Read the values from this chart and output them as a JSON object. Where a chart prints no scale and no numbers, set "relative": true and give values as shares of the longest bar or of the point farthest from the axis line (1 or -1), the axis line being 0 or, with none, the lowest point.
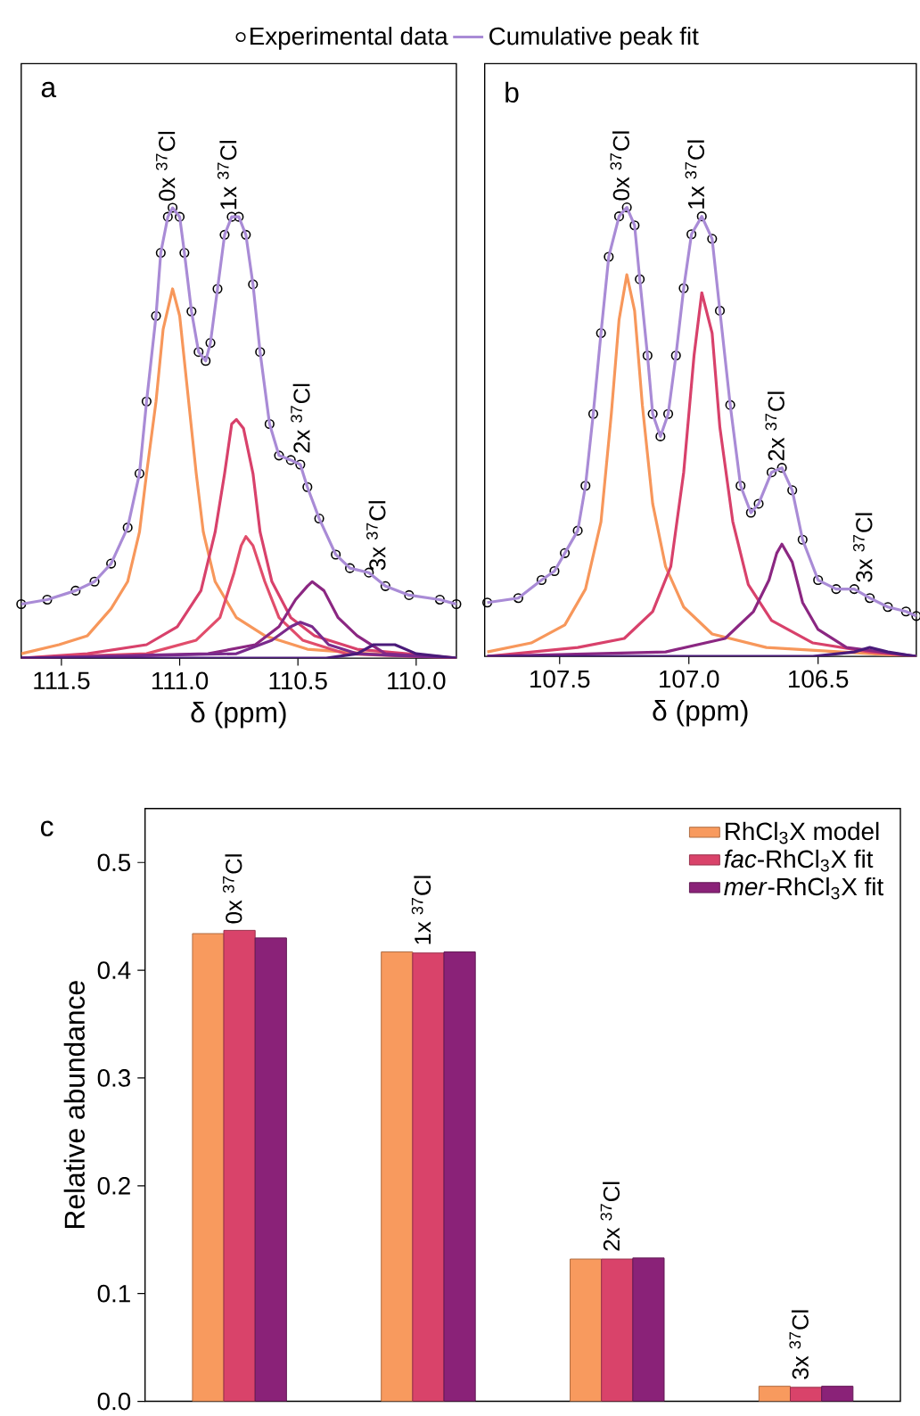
{
  "chart_data": [
    {
      "type": "line",
      "title": "a",
      "xlabel": "δ (ppm)",
      "relative": true,
      "legend": "top",
      "xlim": [
        111.67,
        109.83
      ],
      "xticks": [
        111.5,
        {
          "value": 111,
          "label": "111.0"
        },
        110.5,
        {
          "value": 110,
          "label": "110.0"
        }
      ],
      "annotations": [
        {
          "text": "0x $^{37}$Cl",
          "x": 111.03,
          "y": 1.0
        },
        {
          "text": "1x $^{37}$Cl",
          "x": 110.77,
          "y": 0.98
        },
        {
          "text": "2x $^{37}$Cl",
          "x": 110.46,
          "y": 0.44
        },
        {
          "text": "3x $^{37}$Cl",
          "x": 110.14,
          "y": 0.18
        }
      ],
      "series": [
        {
          "name": "Experimental data",
          "type": "scatter",
          "marker": "circle",
          "color": "#000000",
          "x": [
            111.67,
            111.56,
            111.44,
            111.36,
            111.29,
            111.22,
            111.17,
            111.14,
            111.1,
            111.08,
            111.05,
            111.03,
            111.0,
            110.98,
            110.95,
            110.92,
            110.89,
            110.87,
            110.84,
            110.81,
            110.78,
            110.75,
            110.72,
            110.69,
            110.66,
            110.62,
            110.58,
            110.53,
            110.49,
            110.46,
            110.41,
            110.34,
            110.28,
            110.2,
            110.13,
            110.03,
            109.9,
            109.83
          ],
          "values": [
            0.12,
            0.13,
            0.15,
            0.17,
            0.21,
            0.29,
            0.41,
            0.57,
            0.76,
            0.9,
            0.98,
            1.0,
            0.98,
            0.9,
            0.77,
            0.68,
            0.66,
            0.7,
            0.82,
            0.94,
            0.98,
            0.98,
            0.94,
            0.83,
            0.68,
            0.52,
            0.45,
            0.44,
            0.43,
            0.38,
            0.31,
            0.23,
            0.2,
            0.19,
            0.16,
            0.14,
            0.13,
            0.12
          ]
        },
        {
          "name": "Cumulative peak fit",
          "type": "line",
          "color": "#a98bd6",
          "x": [
            111.67,
            111.56,
            111.44,
            111.36,
            111.29,
            111.22,
            111.17,
            111.14,
            111.1,
            111.08,
            111.05,
            111.03,
            111.0,
            110.98,
            110.95,
            110.92,
            110.89,
            110.87,
            110.84,
            110.81,
            110.78,
            110.75,
            110.72,
            110.69,
            110.66,
            110.62,
            110.58,
            110.53,
            110.49,
            110.46,
            110.41,
            110.34,
            110.28,
            110.2,
            110.13,
            110.03,
            109.9,
            109.83
          ],
          "values": [
            0.12,
            0.13,
            0.15,
            0.17,
            0.21,
            0.29,
            0.41,
            0.57,
            0.76,
            0.9,
            0.98,
            1.0,
            0.98,
            0.9,
            0.77,
            0.68,
            0.66,
            0.7,
            0.82,
            0.94,
            0.98,
            0.98,
            0.94,
            0.83,
            0.68,
            0.52,
            0.45,
            0.44,
            0.43,
            0.38,
            0.31,
            0.23,
            0.2,
            0.19,
            0.16,
            0.14,
            0.13,
            0.12
          ]
        },
        {
          "color": "#f7975b",
          "x": [
            111.67,
            111.51,
            111.39,
            111.29,
            111.22,
            111.17,
            111.14,
            111.1,
            111.07,
            111.03,
            111.0,
            110.97,
            110.93,
            110.9,
            110.85,
            110.76,
            110.64,
            110.46,
            110.2,
            109.83
          ],
          "values": [
            0.01,
            0.03,
            0.05,
            0.11,
            0.17,
            0.28,
            0.41,
            0.57,
            0.73,
            0.82,
            0.76,
            0.61,
            0.41,
            0.28,
            0.17,
            0.09,
            0.05,
            0.02,
            0.01,
            0.0
          ]
        },
        {
          "color": "#d8416b",
          "x": [
            111.67,
            111.39,
            111.14,
            111.01,
            110.91,
            110.85,
            110.81,
            110.78,
            110.76,
            110.73,
            110.69,
            110.66,
            110.61,
            110.53,
            110.43,
            110.25,
            109.83
          ],
          "values": [
            0.0,
            0.01,
            0.03,
            0.07,
            0.15,
            0.28,
            0.41,
            0.52,
            0.53,
            0.51,
            0.41,
            0.28,
            0.17,
            0.09,
            0.05,
            0.02,
            0.0
          ]
        },
        {
          "color": "#e14d6b",
          "x": [
            111.67,
            111.14,
            110.93,
            110.83,
            110.77,
            110.74,
            110.72,
            110.69,
            110.64,
            110.58,
            110.48,
            110.3,
            109.83
          ],
          "values": [
            0.0,
            0.01,
            0.04,
            0.09,
            0.19,
            0.25,
            0.27,
            0.25,
            0.17,
            0.09,
            0.04,
            0.01,
            0.0
          ]
        },
        {
          "color": "#8b2782",
          "x": [
            111.67,
            110.88,
            110.68,
            110.58,
            110.51,
            110.46,
            110.44,
            110.39,
            110.33,
            110.25,
            110.13,
            109.83
          ],
          "values": [
            0.0,
            0.01,
            0.03,
            0.07,
            0.13,
            0.16,
            0.17,
            0.15,
            0.09,
            0.05,
            0.01,
            0.0
          ]
        },
        {
          "color": "#7a2a8c",
          "x": [
            111.67,
            110.76,
            110.61,
            110.53,
            110.49,
            110.44,
            110.37,
            110.25,
            109.83
          ],
          "values": [
            0.0,
            0.01,
            0.04,
            0.07,
            0.08,
            0.07,
            0.03,
            0.01,
            0.0
          ]
        },
        {
          "color": "#4a1a7a",
          "x": [
            111.67,
            110.38,
            110.25,
            110.18,
            110.14,
            110.09,
            110.0,
            109.83
          ],
          "values": [
            0.0,
            0.0,
            0.01,
            0.03,
            0.03,
            0.03,
            0.01,
            0.0
          ]
        }
      ]
    },
    {
      "type": "line",
      "title": "b",
      "xlabel": "δ (ppm)",
      "relative": true,
      "xlim": [
        107.79,
        106.12
      ],
      "xticks": [
        107.5,
        {
          "value": 107,
          "label": "107.0"
        },
        106.5
      ],
      "annotations": [
        {
          "text": "0x $^{37}$Cl",
          "x": 107.24,
          "y": 1.0
        },
        {
          "text": "1x $^{37}$Cl",
          "x": 106.95,
          "y": 0.98
        },
        {
          "text": "2x $^{37}$Cl",
          "x": 106.64,
          "y": 0.42
        },
        {
          "text": "3x $^{37}$Cl",
          "x": 106.3,
          "y": 0.15
        }
      ],
      "series": [
        {
          "type": "scatter",
          "marker": "circle",
          "color": "#000000",
          "x": [
            107.78,
            107.66,
            107.57,
            107.52,
            107.48,
            107.43,
            107.4,
            107.37,
            107.34,
            107.31,
            107.27,
            107.24,
            107.21,
            107.19,
            107.16,
            107.14,
            107.11,
            107.08,
            107.05,
            107.02,
            106.99,
            106.95,
            106.91,
            106.88,
            106.84,
            106.8,
            106.76,
            106.73,
            106.68,
            106.64,
            106.6,
            106.56,
            106.5,
            106.43,
            106.36,
            106.3,
            106.23,
            106.16,
            106.12
          ],
          "values": [
            0.12,
            0.13,
            0.17,
            0.19,
            0.23,
            0.28,
            0.38,
            0.54,
            0.72,
            0.89,
            0.98,
            1.0,
            0.96,
            0.84,
            0.67,
            0.54,
            0.49,
            0.54,
            0.67,
            0.82,
            0.94,
            0.98,
            0.93,
            0.77,
            0.56,
            0.38,
            0.32,
            0.34,
            0.41,
            0.42,
            0.37,
            0.26,
            0.17,
            0.15,
            0.15,
            0.13,
            0.11,
            0.1,
            0.09
          ]
        },
        {
          "type": "line",
          "color": "#a98bd6",
          "x": [
            107.78,
            107.66,
            107.57,
            107.52,
            107.48,
            107.43,
            107.4,
            107.37,
            107.34,
            107.31,
            107.27,
            107.24,
            107.21,
            107.19,
            107.16,
            107.14,
            107.11,
            107.08,
            107.05,
            107.02,
            106.99,
            106.95,
            106.91,
            106.88,
            106.84,
            106.8,
            106.76,
            106.73,
            106.68,
            106.64,
            106.6,
            106.56,
            106.5,
            106.43,
            106.36,
            106.3,
            106.23,
            106.16,
            106.12
          ],
          "values": [
            0.12,
            0.13,
            0.17,
            0.19,
            0.23,
            0.28,
            0.38,
            0.54,
            0.72,
            0.89,
            0.98,
            1.0,
            0.96,
            0.84,
            0.67,
            0.54,
            0.49,
            0.54,
            0.67,
            0.82,
            0.94,
            0.98,
            0.93,
            0.77,
            0.56,
            0.38,
            0.32,
            0.34,
            0.41,
            0.42,
            0.37,
            0.26,
            0.17,
            0.15,
            0.15,
            0.13,
            0.11,
            0.1,
            0.09
          ]
        },
        {
          "color": "#f7975b",
          "x": [
            107.78,
            107.61,
            107.48,
            107.4,
            107.34,
            107.3,
            107.27,
            107.24,
            107.21,
            107.18,
            107.14,
            107.09,
            107.02,
            106.91,
            106.7,
            106.41,
            106.12
          ],
          "values": [
            0.01,
            0.03,
            0.07,
            0.15,
            0.3,
            0.54,
            0.75,
            0.85,
            0.77,
            0.56,
            0.34,
            0.2,
            0.11,
            0.05,
            0.02,
            0.01,
            0.0
          ]
        },
        {
          "color": "#d8416b",
          "x": [
            107.78,
            107.43,
            107.25,
            107.14,
            107.07,
            107.02,
            106.98,
            106.95,
            106.91,
            106.88,
            106.83,
            106.77,
            106.68,
            106.52,
            106.3,
            106.12
          ],
          "values": [
            0.0,
            0.02,
            0.04,
            0.1,
            0.2,
            0.41,
            0.67,
            0.81,
            0.72,
            0.51,
            0.3,
            0.16,
            0.08,
            0.03,
            0.01,
            0.0
          ]
        },
        {
          "color": "#8b2782",
          "x": [
            107.78,
            107.09,
            106.86,
            106.75,
            106.69,
            106.66,
            106.64,
            106.6,
            106.56,
            106.5,
            106.39,
            106.12
          ],
          "values": [
            0.0,
            0.01,
            0.04,
            0.1,
            0.17,
            0.23,
            0.25,
            0.21,
            0.12,
            0.06,
            0.02,
            0.0
          ]
        },
        {
          "color": "#4a1a7a",
          "x": [
            107.78,
            106.52,
            106.36,
            106.3,
            106.23,
            106.12
          ],
          "values": [
            0.0,
            0.0,
            0.01,
            0.02,
            0.01,
            0.0
          ]
        }
      ]
    },
    {
      "type": "bar",
      "title": "c",
      "ylabel": "Relative abundance",
      "legend": "top right",
      "categories": [
        "0x $^{37}$Cl",
        "1x $^{37}$Cl",
        "2x $^{37}$Cl",
        "3x $^{37}$Cl"
      ],
      "ylim": [
        0,
        0.55
      ],
      "yticks": [
        {
          "value": 0,
          "label": "0.0"
        },
        0.1,
        0.2,
        0.3,
        0.4,
        0.5
      ],
      "series": [
        {
          "name": "RhCl$_{3}$X model",
          "color": "#f89a5e",
          "values": [
            0.434,
            0.417,
            0.132,
            0.014
          ]
        },
        {
          "name": "*fac*-RhCl$_{3}$X fit",
          "color": "#d9436a",
          "values": [
            0.437,
            0.416,
            0.132,
            0.013
          ]
        },
        {
          "name": "*mer*-RhCl$_{3}$X fit",
          "color": "#8a2278",
          "values": [
            0.43,
            0.417,
            0.133,
            0.014
          ]
        }
      ]
    }
  ]
}
